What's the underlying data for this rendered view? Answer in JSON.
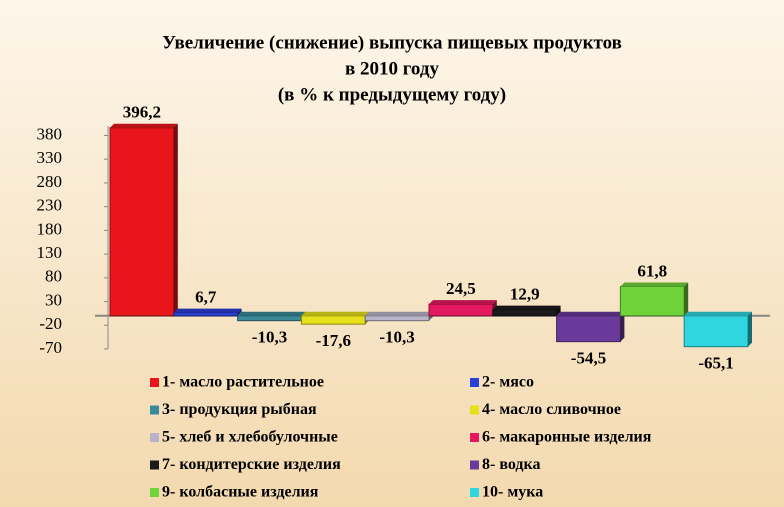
{
  "chart_data": {
    "type": "bar",
    "title": "Увеличение (снижение) выпуска пищевых продуктов",
    "subtitle": "в 2010 году",
    "subtitle2": "(в % к предыдущему году)",
    "ylim": [
      -70,
      400
    ],
    "yticks": [
      -70,
      -20,
      30,
      80,
      130,
      180,
      230,
      280,
      330,
      380
    ],
    "series": [
      {
        "name": "1- масло растительное",
        "color": "#e8161b",
        "values": [
          396.2
        ],
        "value_labels": [
          "396,2"
        ]
      },
      {
        "name": "2- мясо",
        "color": "#2a3fd6",
        "values": [
          6.7
        ],
        "value_labels": [
          "6,7"
        ]
      },
      {
        "name": "3- продукция рыбная",
        "color": "#3a8a9a",
        "values": [
          -10.3
        ],
        "value_labels": [
          "-10,3"
        ]
      },
      {
        "name": "4- масло сливочное",
        "color": "#e6e01a",
        "values": [
          -17.6
        ],
        "value_labels": [
          "-17,6"
        ]
      },
      {
        "name": "5- хлеб и хлебобулочные",
        "color": "#b7b3c8",
        "values": [
          -10.3
        ],
        "value_labels": [
          "-10,3"
        ]
      },
      {
        "name": "6- макаронные изделия",
        "color": "#e4185e",
        "values": [
          24.5
        ],
        "value_labels": [
          "24,5"
        ]
      },
      {
        "name": "7- кондитерские изделия",
        "color": "#1a1a1a",
        "values": [
          12.9
        ],
        "value_labels": [
          "12,9"
        ]
      },
      {
        "name": "8- водка",
        "color": "#6a3a9a",
        "values": [
          -54.5
        ],
        "value_labels": [
          "-54,5"
        ]
      },
      {
        "name": "9- колбасные изделия",
        "color": "#6ed43a",
        "values": [
          61.8
        ],
        "value_labels": [
          "61,8"
        ]
      },
      {
        "name": "10- мука",
        "color": "#2fd6e0",
        "values": [
          -65.1
        ],
        "value_labels": [
          "-65,1"
        ]
      }
    ]
  }
}
